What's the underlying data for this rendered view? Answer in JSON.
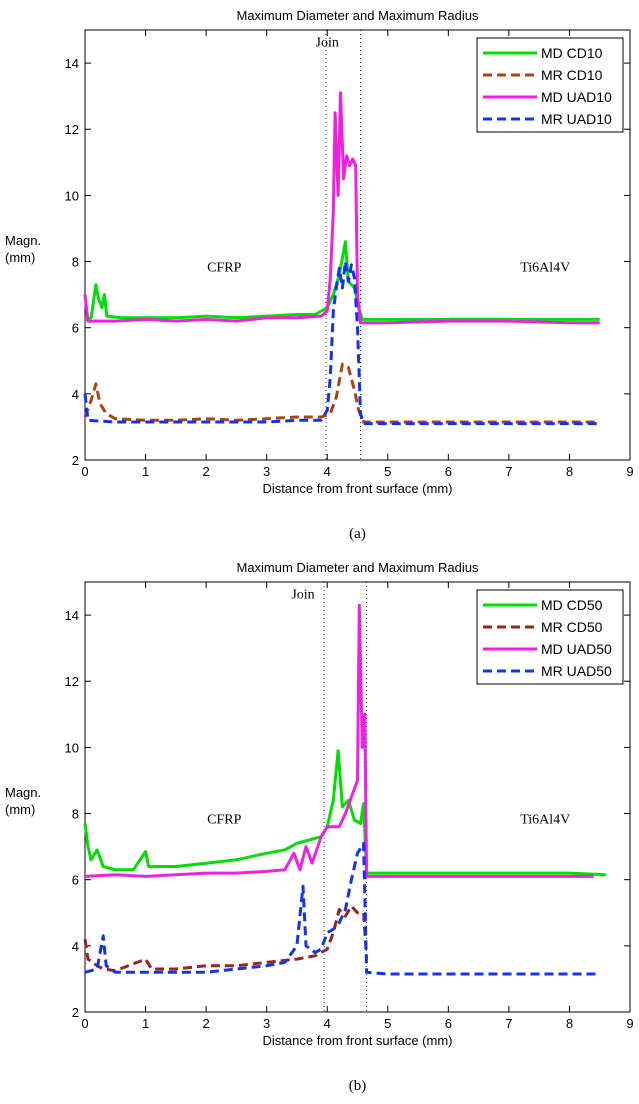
{
  "chart_data": [
    {
      "type": "line",
      "title": "Maximum Diameter and Maximum Radius",
      "xlabel": "Distance from front surface (mm)",
      "ylabel": "Magn.",
      "ylabel_unit": "(mm)",
      "caption": "(a)",
      "xlim": [
        0,
        9
      ],
      "ylim": [
        2,
        15
      ],
      "xticks": [
        "0",
        "1",
        "2",
        "3",
        "4",
        "5",
        "6",
        "7",
        "8",
        "9"
      ],
      "yticks": [
        "2",
        "4",
        "6",
        "8",
        "10",
        "12",
        "14"
      ],
      "grid": false,
      "legend_position": "top-right",
      "annotations": [
        {
          "text": "Join",
          "x": 4.0,
          "y": 14.5
        },
        {
          "text": "CFRP",
          "x": 2.3,
          "y": 7.7
        },
        {
          "text": "Ti6Al4V",
          "x": 7.6,
          "y": 7.7
        }
      ],
      "vlines": [
        3.98,
        4.55
      ],
      "series": [
        {
          "name": "MD CD10",
          "color": "#00dd00",
          "dash": "solid",
          "points": [
            [
              0,
              6.25
            ],
            [
              0.1,
              6.3
            ],
            [
              0.18,
              7.3
            ],
            [
              0.22,
              6.9
            ],
            [
              0.28,
              6.6
            ],
            [
              0.32,
              7.0
            ],
            [
              0.36,
              6.35
            ],
            [
              0.6,
              6.3
            ],
            [
              1,
              6.3
            ],
            [
              1.5,
              6.3
            ],
            [
              2,
              6.35
            ],
            [
              2.5,
              6.3
            ],
            [
              3,
              6.35
            ],
            [
              3.5,
              6.4
            ],
            [
              3.8,
              6.4
            ],
            [
              4.0,
              6.6
            ],
            [
              4.1,
              7.0
            ],
            [
              4.2,
              7.6
            ],
            [
              4.3,
              8.6
            ],
            [
              4.35,
              7.4
            ],
            [
              4.45,
              7.2
            ],
            [
              4.52,
              6.6
            ],
            [
              4.58,
              6.25
            ],
            [
              5,
              6.25
            ],
            [
              6,
              6.25
            ],
            [
              7,
              6.25
            ],
            [
              8,
              6.25
            ],
            [
              8.5,
              6.25
            ]
          ]
        },
        {
          "name": "MR CD10",
          "color": "#aa4411",
          "dash": "dashed",
          "points": [
            [
              0,
              3.3
            ],
            [
              0.1,
              3.8
            ],
            [
              0.18,
              4.3
            ],
            [
              0.25,
              3.7
            ],
            [
              0.35,
              3.4
            ],
            [
              0.5,
              3.25
            ],
            [
              1,
              3.2
            ],
            [
              1.5,
              3.2
            ],
            [
              2,
              3.25
            ],
            [
              2.5,
              3.2
            ],
            [
              3,
              3.25
            ],
            [
              3.5,
              3.3
            ],
            [
              3.9,
              3.3
            ],
            [
              4.05,
              3.4
            ],
            [
              4.15,
              3.9
            ],
            [
              4.25,
              4.9
            ],
            [
              4.35,
              4.8
            ],
            [
              4.45,
              4.1
            ],
            [
              4.52,
              3.5
            ],
            [
              4.6,
              3.15
            ],
            [
              5,
              3.15
            ],
            [
              6,
              3.15
            ],
            [
              7,
              3.15
            ],
            [
              8,
              3.15
            ],
            [
              8.5,
              3.15
            ]
          ]
        },
        {
          "name": "MD UAD10",
          "color": "#ee22dd",
          "dash": "solid",
          "points": [
            [
              0,
              7.0
            ],
            [
              0.05,
              6.2
            ],
            [
              0.5,
              6.2
            ],
            [
              1,
              6.25
            ],
            [
              1.5,
              6.2
            ],
            [
              2,
              6.25
            ],
            [
              2.5,
              6.2
            ],
            [
              3,
              6.3
            ],
            [
              3.5,
              6.3
            ],
            [
              3.9,
              6.35
            ],
            [
              4.0,
              6.5
            ],
            [
              4.05,
              7.5
            ],
            [
              4.1,
              9.5
            ],
            [
              4.13,
              12.5
            ],
            [
              4.18,
              10.0
            ],
            [
              4.22,
              13.1
            ],
            [
              4.27,
              10.5
            ],
            [
              4.32,
              11.2
            ],
            [
              4.37,
              10.9
            ],
            [
              4.42,
              11.1
            ],
            [
              4.47,
              10.9
            ],
            [
              4.5,
              7.0
            ],
            [
              4.55,
              6.15
            ],
            [
              5,
              6.15
            ],
            [
              6,
              6.2
            ],
            [
              7,
              6.2
            ],
            [
              8,
              6.15
            ],
            [
              8.5,
              6.15
            ]
          ]
        },
        {
          "name": "MR UAD10",
          "color": "#1133ee",
          "dash": "dashed",
          "points": [
            [
              0,
              4.0
            ],
            [
              0.05,
              3.2
            ],
            [
              0.5,
              3.15
            ],
            [
              1,
              3.15
            ],
            [
              1.5,
              3.15
            ],
            [
              2,
              3.15
            ],
            [
              2.5,
              3.15
            ],
            [
              3,
              3.15
            ],
            [
              3.5,
              3.2
            ],
            [
              3.9,
              3.2
            ],
            [
              4.0,
              3.5
            ],
            [
              4.05,
              4.5
            ],
            [
              4.1,
              6.5
            ],
            [
              4.15,
              7.2
            ],
            [
              4.2,
              7.8
            ],
            [
              4.25,
              7.2
            ],
            [
              4.3,
              8.0
            ],
            [
              4.35,
              7.4
            ],
            [
              4.4,
              7.9
            ],
            [
              4.45,
              7.5
            ],
            [
              4.5,
              6.0
            ],
            [
              4.55,
              3.4
            ],
            [
              4.6,
              3.1
            ],
            [
              5,
              3.1
            ],
            [
              6,
              3.1
            ],
            [
              7,
              3.1
            ],
            [
              8,
              3.1
            ],
            [
              8.5,
              3.1
            ]
          ]
        }
      ]
    },
    {
      "type": "line",
      "title": "Maximum Diameter and Maximum Radius",
      "xlabel": "Distance from front surface (mm)",
      "ylabel": "Magn.",
      "ylabel_unit": "(mm)",
      "caption": "(b)",
      "xlim": [
        0,
        9
      ],
      "ylim": [
        2,
        15
      ],
      "xticks": [
        "0",
        "1",
        "2",
        "3",
        "4",
        "5",
        "6",
        "7",
        "8",
        "9"
      ],
      "yticks": [
        "2",
        "4",
        "6",
        "8",
        "10",
        "12",
        "14"
      ],
      "grid": false,
      "legend_position": "top-right",
      "annotations": [
        {
          "text": "Join",
          "x": 3.6,
          "y": 14.5
        },
        {
          "text": "CFRP",
          "x": 2.3,
          "y": 7.7
        },
        {
          "text": "Ti6Al4V",
          "x": 7.6,
          "y": 7.7
        }
      ],
      "vlines": [
        3.95,
        4.65
      ],
      "series": [
        {
          "name": "MD CD50",
          "color": "#00dd00",
          "dash": "solid",
          "points": [
            [
              0,
              7.7
            ],
            [
              0.05,
              7.0
            ],
            [
              0.1,
              6.6
            ],
            [
              0.2,
              6.9
            ],
            [
              0.3,
              6.4
            ],
            [
              0.5,
              6.3
            ],
            [
              0.8,
              6.3
            ],
            [
              1,
              6.85
            ],
            [
              1.05,
              6.4
            ],
            [
              1.5,
              6.4
            ],
            [
              2,
              6.5
            ],
            [
              2.5,
              6.6
            ],
            [
              3,
              6.8
            ],
            [
              3.3,
              6.9
            ],
            [
              3.5,
              7.1
            ],
            [
              3.7,
              7.2
            ],
            [
              3.9,
              7.3
            ],
            [
              4.0,
              7.6
            ],
            [
              4.1,
              8.4
            ],
            [
              4.18,
              9.9
            ],
            [
              4.25,
              8.2
            ],
            [
              4.35,
              8.4
            ],
            [
              4.45,
              7.8
            ],
            [
              4.55,
              7.7
            ],
            [
              4.6,
              8.3
            ],
            [
              4.65,
              6.2
            ],
            [
              5,
              6.2
            ],
            [
              6,
              6.2
            ],
            [
              7,
              6.2
            ],
            [
              8,
              6.2
            ],
            [
              8.6,
              6.15
            ]
          ]
        },
        {
          "name": "MR CD50",
          "color": "#992222",
          "dash": "dashed",
          "points": [
            [
              0,
              4.2
            ],
            [
              0.05,
              3.6
            ],
            [
              0.2,
              3.4
            ],
            [
              0.3,
              3.3
            ],
            [
              0.5,
              3.25
            ],
            [
              1,
              3.6
            ],
            [
              1.1,
              3.3
            ],
            [
              1.5,
              3.3
            ],
            [
              2,
              3.4
            ],
            [
              2.5,
              3.4
            ],
            [
              3,
              3.5
            ],
            [
              3.5,
              3.6
            ],
            [
              3.8,
              3.7
            ],
            [
              4.0,
              3.9
            ],
            [
              4.1,
              4.4
            ],
            [
              4.2,
              5.1
            ],
            [
              4.3,
              4.9
            ],
            [
              4.4,
              5.2
            ],
            [
              4.5,
              5.0
            ],
            [
              4.6,
              5.0
            ],
            [
              4.65,
              3.6
            ]
          ]
        },
        {
          "name": "MD UAD50",
          "color": "#ee22dd",
          "dash": "solid",
          "points": [
            [
              0,
              6.1
            ],
            [
              0.5,
              6.15
            ],
            [
              1,
              6.1
            ],
            [
              1.5,
              6.15
            ],
            [
              2,
              6.2
            ],
            [
              2.5,
              6.2
            ],
            [
              3,
              6.25
            ],
            [
              3.3,
              6.3
            ],
            [
              3.45,
              6.8
            ],
            [
              3.55,
              6.3
            ],
            [
              3.65,
              7.0
            ],
            [
              3.75,
              6.5
            ],
            [
              3.9,
              7.3
            ],
            [
              4.0,
              7.6
            ],
            [
              4.2,
              7.6
            ],
            [
              4.3,
              8.0
            ],
            [
              4.4,
              8.5
            ],
            [
              4.5,
              9.0
            ],
            [
              4.53,
              14.3
            ],
            [
              4.58,
              10.0
            ],
            [
              4.62,
              11.0
            ],
            [
              4.65,
              6.1
            ],
            [
              5,
              6.1
            ],
            [
              6,
              6.1
            ],
            [
              7,
              6.1
            ],
            [
              8,
              6.1
            ],
            [
              8.4,
              6.1
            ]
          ]
        },
        {
          "name": "MR UAD50",
          "color": "#1133ee",
          "dash": "dashed",
          "points": [
            [
              0,
              3.2
            ],
            [
              0.2,
              3.3
            ],
            [
              0.3,
              4.3
            ],
            [
              0.35,
              3.4
            ],
            [
              0.5,
              3.2
            ],
            [
              1,
              3.2
            ],
            [
              1.5,
              3.2
            ],
            [
              2,
              3.2
            ],
            [
              2.5,
              3.3
            ],
            [
              3,
              3.4
            ],
            [
              3.3,
              3.5
            ],
            [
              3.5,
              4.0
            ],
            [
              3.6,
              5.8
            ],
            [
              3.65,
              4.0
            ],
            [
              3.8,
              3.8
            ],
            [
              3.9,
              3.9
            ],
            [
              4.0,
              4.4
            ],
            [
              4.1,
              4.5
            ],
            [
              4.2,
              4.7
            ],
            [
              4.3,
              5.1
            ],
            [
              4.4,
              6.0
            ],
            [
              4.5,
              6.8
            ],
            [
              4.6,
              7.1
            ],
            [
              4.65,
              3.2
            ],
            [
              5,
              3.15
            ],
            [
              6,
              3.15
            ],
            [
              7,
              3.15
            ],
            [
              8,
              3.15
            ],
            [
              8.5,
              3.15
            ]
          ]
        }
      ]
    }
  ]
}
